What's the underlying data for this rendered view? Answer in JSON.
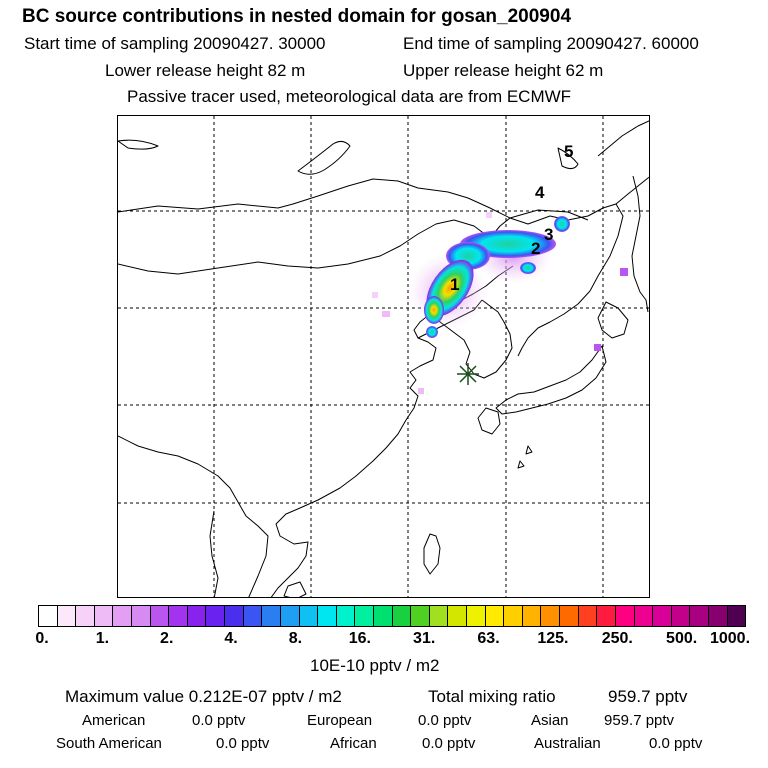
{
  "header": {
    "title": "BC  source contributions in nested domain for gosan_200904",
    "start_label": "Start time of sampling 20090427. 30000",
    "end_label": "End time of sampling 20090427. 60000",
    "lower_release": "Lower release height   82 m",
    "upper_release": "Upper release height   62 m",
    "tracer_note": "Passive tracer used, meteorological data are from ECMWF"
  },
  "map": {
    "markers": [
      "1",
      "2",
      "3",
      "4",
      "5"
    ],
    "receptor_symbol": "✳"
  },
  "colorbar": {
    "ticks": [
      "0.",
      "1.",
      "2.",
      "4.",
      "8.",
      "16.",
      "31.",
      "63.",
      "125.",
      "250.",
      "500.",
      "1000."
    ],
    "colors": [
      "#ffffff",
      "#fbe8fb",
      "#f6d2f8",
      "#eebbf6",
      "#e29ff3",
      "#d68af2",
      "#bb55f0",
      "#a333ee",
      "#8a22ee",
      "#6a22f0",
      "#4a30ee",
      "#3a55f2",
      "#2b7ef2",
      "#1e9ff4",
      "#10c0f2",
      "#00e6f0",
      "#00f2cc",
      "#00f0a0",
      "#00e070",
      "#18d040",
      "#50d020",
      "#a0e020",
      "#d2e600",
      "#eef200",
      "#ffea00",
      "#ffd000",
      "#ffb200",
      "#ff9000",
      "#ff6a00",
      "#ff4020",
      "#ff1a40",
      "#ff0080",
      "#ee0090",
      "#d80098",
      "#c2008a",
      "#a80080",
      "#880070",
      "#500050"
    ],
    "units": "10E-10 pptv / m2"
  },
  "summary": {
    "maximum_label": "Maximum value  0.212E-07 pptv / m2",
    "total_label": "Total mixing ratio",
    "total_value": "959.7 pptv",
    "regions": [
      {
        "name": "American",
        "value": "0.0 pptv"
      },
      {
        "name": "European",
        "value": "0.0 pptv"
      },
      {
        "name": "Asian",
        "value": "959.7 pptv"
      },
      {
        "name": "South American",
        "value": "0.0 pptv"
      },
      {
        "name": "African",
        "value": "0.0 pptv"
      },
      {
        "name": "Australian",
        "value": "0.0 pptv"
      }
    ]
  }
}
